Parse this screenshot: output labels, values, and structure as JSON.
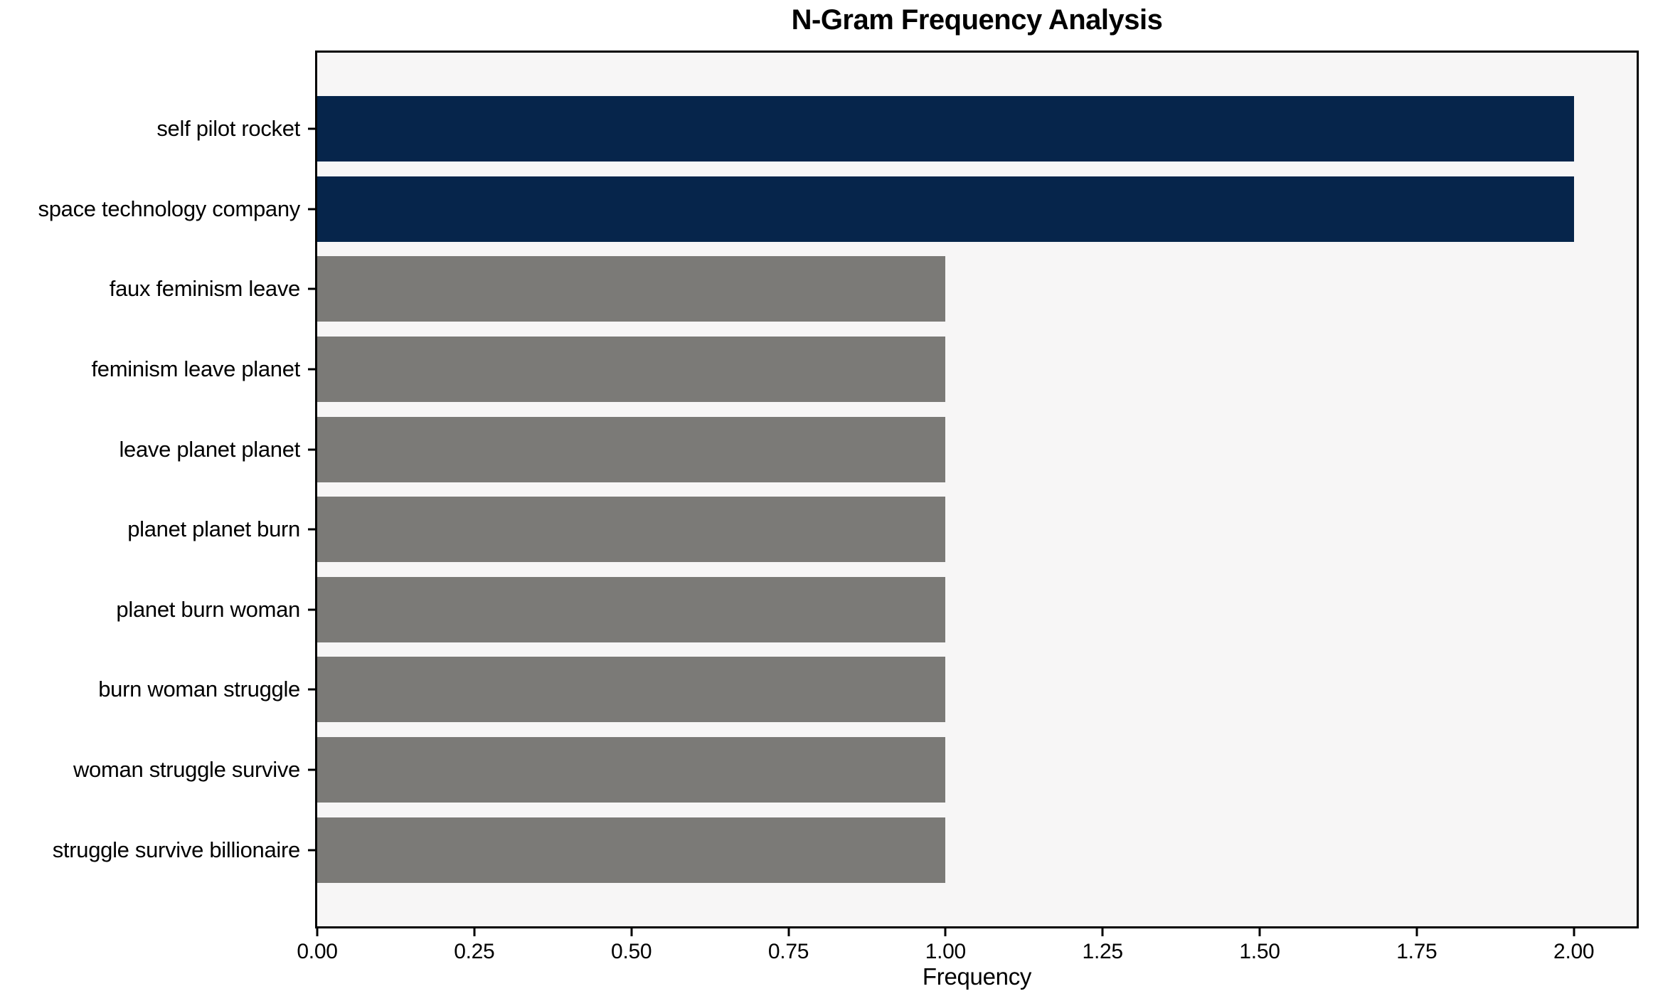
{
  "chart_data": {
    "type": "bar",
    "orientation": "horizontal",
    "title": "N-Gram Frequency Analysis",
    "xlabel": "Frequency",
    "ylabel": "",
    "categories": [
      "self pilot rocket",
      "space technology company",
      "faux feminism leave",
      "feminism leave planet",
      "leave planet planet",
      "planet planet burn",
      "planet burn woman",
      "burn woman struggle",
      "woman struggle survive",
      "struggle survive billionaire"
    ],
    "values": [
      2,
      2,
      1,
      1,
      1,
      1,
      1,
      1,
      1,
      1
    ],
    "bar_colors": [
      "#06254b",
      "#06254b",
      "#7b7a77",
      "#7b7a77",
      "#7b7a77",
      "#7b7a77",
      "#7b7a77",
      "#7b7a77",
      "#7b7a77",
      "#7b7a77"
    ],
    "highlight_color": "#06254b",
    "default_bar_color": "#7b7a77",
    "plot_background": "#f7f6f6",
    "frame_color": "#000000",
    "xlim": [
      0,
      2.1
    ],
    "x_tick_values": [
      0,
      0.25,
      0.5,
      0.75,
      1.0,
      1.25,
      1.5,
      1.75,
      2.0
    ],
    "x_tick_labels": [
      "0.00",
      "0.25",
      "0.50",
      "0.75",
      "1.00",
      "1.25",
      "1.50",
      "1.75",
      "2.00"
    ],
    "grid": "off",
    "legend": "none"
  }
}
